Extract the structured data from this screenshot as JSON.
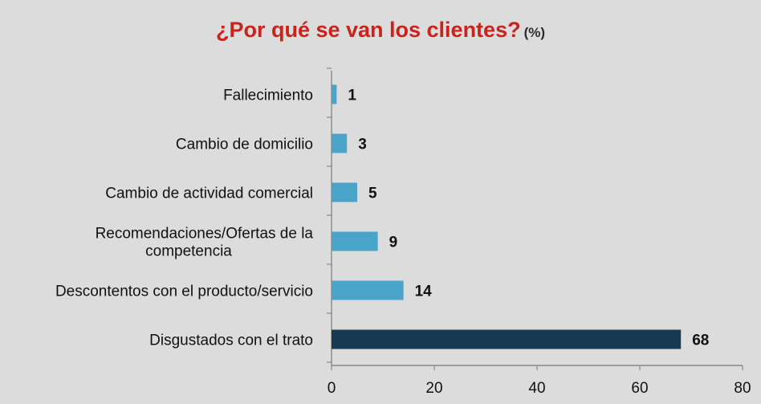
{
  "title": {
    "main": "¿Por qué se van los clientes?",
    "unit": "(%)"
  },
  "colors": {
    "bar": "#4aa3c8",
    "highlight": "#173a52",
    "title": "#c8231c",
    "axis": "#7a7a7a",
    "background": "#dcdcdc"
  },
  "chart_data": {
    "type": "bar",
    "orientation": "horizontal",
    "title": "¿Por qué se van los clientes? (%)",
    "categories": [
      "Fallecimiento",
      "Cambio de domicilio",
      "Cambio de actividad comercial",
      "Recomendaciones/Ofertas de la competencia",
      "Descontentos con el producto/servicio",
      "Disgustados con el trato"
    ],
    "category_lines": [
      [
        "Fallecimiento"
      ],
      [
        "Cambio de domicilio"
      ],
      [
        "Cambio de actividad comercial"
      ],
      [
        "Recomendaciones/Ofertas de la",
        "competencia"
      ],
      [
        "Descontentos con el producto/servicio"
      ],
      [
        "Disgustados con el trato"
      ]
    ],
    "values": [
      1,
      3,
      5,
      9,
      14,
      68
    ],
    "highlight_index": 5,
    "xlim": [
      0,
      80
    ],
    "xticks": [
      0,
      20,
      40,
      60,
      80
    ],
    "xlabel": "",
    "ylabel": "",
    "grid": false,
    "legend": "none"
  }
}
